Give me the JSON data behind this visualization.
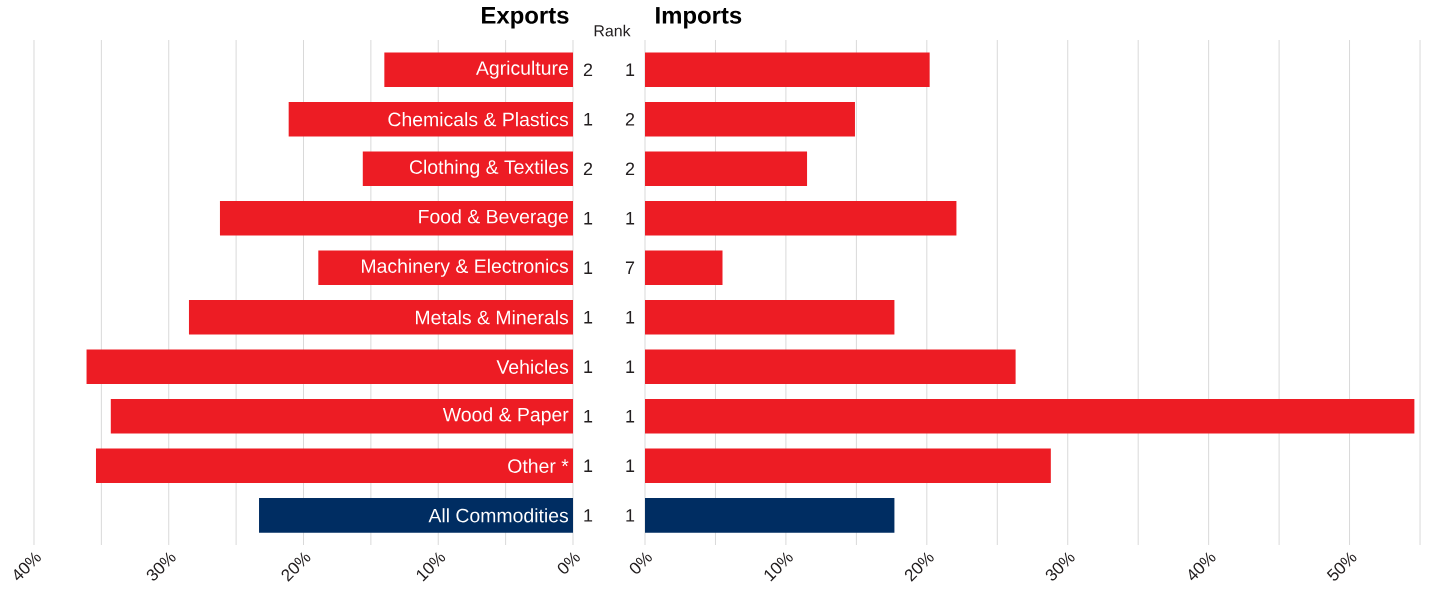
{
  "chart_data": [
    {
      "type": "bar",
      "orientation": "horizontal",
      "title": "Exports",
      "categories": [
        "Agriculture",
        "Chemicals & Plastics",
        "Clothing & Textiles",
        "Food & Beverage",
        "Machinery & Electronics",
        "Metals & Minerals",
        "Vehicles",
        "Wood & Paper",
        "Other *",
        "All Commodities"
      ],
      "values": [
        14.0,
        21.1,
        15.6,
        26.2,
        18.9,
        28.5,
        36.1,
        34.3,
        35.4,
        23.3
      ],
      "colors": [
        "#ed1c24",
        "#ed1c24",
        "#ed1c24",
        "#ed1c24",
        "#ed1c24",
        "#ed1c24",
        "#ed1c24",
        "#ed1c24",
        "#ed1c24",
        "#002d62"
      ],
      "xlim": [
        40,
        0
      ],
      "xticks": [
        {
          "value": 0,
          "label": "0%"
        },
        {
          "value": 5,
          "label": null
        },
        {
          "value": 10,
          "label": "10%"
        },
        {
          "value": 15,
          "label": null
        },
        {
          "value": 20,
          "label": "20%"
        },
        {
          "value": 25,
          "label": null
        },
        {
          "value": 30,
          "label": "30%"
        },
        {
          "value": 35,
          "label": null
        },
        {
          "value": 40,
          "label": "40%"
        }
      ],
      "grid": "x",
      "annotations": [
        "Rank",
        "2",
        "1",
        "2",
        "1",
        "1",
        "1",
        "1",
        "1",
        "1",
        "1"
      ]
    },
    {
      "type": "bar",
      "orientation": "horizontal",
      "title": "Imports",
      "values": [
        20.2,
        14.9,
        11.5,
        22.1,
        5.5,
        17.7,
        26.3,
        54.6,
        28.8,
        17.7
      ],
      "colors": [
        "#ed1c24",
        "#ed1c24",
        "#ed1c24",
        "#ed1c24",
        "#ed1c24",
        "#ed1c24",
        "#ed1c24",
        "#ed1c24",
        "#ed1c24",
        "#002d62"
      ],
      "xlim": [
        0,
        55
      ],
      "xticks": [
        {
          "value": 0,
          "label": "0%"
        },
        {
          "value": 5,
          "label": null
        },
        {
          "value": 10,
          "label": "10%"
        },
        {
          "value": 15,
          "label": null
        },
        {
          "value": 20,
          "label": "20%"
        },
        {
          "value": 25,
          "label": null
        },
        {
          "value": 30,
          "label": "30%"
        },
        {
          "value": 35,
          "label": null
        },
        {
          "value": 40,
          "label": "40%"
        },
        {
          "value": 45,
          "label": null
        },
        {
          "value": 50,
          "label": "50%"
        },
        {
          "value": 55,
          "label": null
        }
      ],
      "grid": "x",
      "tick_labels": "x",
      "annotations": [
        "1",
        "2",
        "2",
        "1",
        "7",
        "1",
        "1",
        "1",
        "1",
        "1"
      ]
    }
  ]
}
